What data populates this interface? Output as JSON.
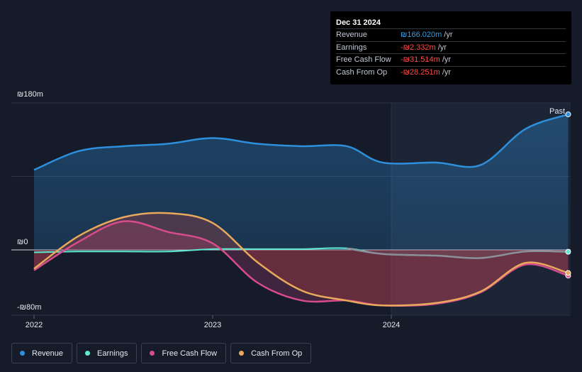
{
  "tooltip": {
    "date": "Dec 31 2024",
    "rows": [
      {
        "label": "Revenue",
        "value": "₪166.020m",
        "unit": "/yr",
        "color": "#3a9bdc"
      },
      {
        "label": "Earnings",
        "value": "-₪2.332m",
        "unit": "/yr",
        "color": "#ff4d4d"
      },
      {
        "label": "Free Cash Flow",
        "value": "-₪31.514m",
        "unit": "/yr",
        "color": "#ff4d4d"
      },
      {
        "label": "Cash From Op",
        "value": "-₪28.251m",
        "unit": "/yr",
        "color": "#ff4d4d"
      }
    ]
  },
  "legend": [
    {
      "label": "Revenue",
      "color": "#2e8fdc"
    },
    {
      "label": "Earnings",
      "color": "#5ee8d2"
    },
    {
      "label": "Free Cash Flow",
      "color": "#d84c8c"
    },
    {
      "label": "Cash From Op",
      "color": "#e8a95c"
    }
  ],
  "past_label": "Past",
  "chart_data": {
    "type": "area",
    "y_unit": "₪m",
    "ylim": [
      -80,
      180
    ],
    "y_ticks": [
      {
        "value": 180,
        "label": "₪180m"
      },
      {
        "value": 0,
        "label": "₪0"
      },
      {
        "value": -80,
        "label": "-₪80m"
      }
    ],
    "x_ticks": [
      {
        "value": 2022.0,
        "label": "2022"
      },
      {
        "value": 2023.0,
        "label": "2023"
      },
      {
        "value": 2024.0,
        "label": "2024"
      }
    ],
    "xlim": [
      2021.87,
      2024.99
    ],
    "past_start": 2024.0,
    "grid": true,
    "series": [
      {
        "name": "Revenue",
        "color": "#2e8fdc",
        "x": [
          2022.0,
          2022.25,
          2022.5,
          2022.75,
          2023.0,
          2023.25,
          2023.5,
          2023.75,
          2023.95,
          2024.25,
          2024.5,
          2024.75,
          2024.99
        ],
        "y": [
          98,
          121,
          127,
          130,
          137,
          130,
          127,
          127,
          107,
          107,
          104,
          148,
          166
        ]
      },
      {
        "name": "Earnings",
        "color": "#5ee8d2",
        "x": [
          2022.0,
          2022.25,
          2022.5,
          2022.75,
          2023.0,
          2023.25,
          2023.5,
          2023.75,
          2023.95,
          2024.25,
          2024.5,
          2024.75,
          2024.99
        ],
        "y": [
          -3,
          -2,
          -2,
          -2,
          1,
          1,
          1,
          2,
          -5,
          -7,
          -10,
          -2,
          -2.3
        ]
      },
      {
        "name": "Free Cash Flow",
        "color": "#d84c8c",
        "x": [
          2022.0,
          2022.25,
          2022.5,
          2022.75,
          2023.0,
          2023.25,
          2023.5,
          2023.75,
          2023.95,
          2024.25,
          2024.5,
          2024.75,
          2024.99
        ],
        "y": [
          -25,
          10,
          35,
          22,
          8,
          -40,
          -62,
          -62,
          -68,
          -66,
          -52,
          -18,
          -31.5
        ]
      },
      {
        "name": "Cash From Op",
        "color": "#e8a95c",
        "x": [
          2022.0,
          2022.25,
          2022.5,
          2022.75,
          2023.0,
          2023.25,
          2023.5,
          2023.75,
          2023.95,
          2024.25,
          2024.5,
          2024.75,
          2024.99
        ],
        "y": [
          -23,
          17,
          40,
          45,
          33,
          -15,
          -50,
          -62,
          -68,
          -65,
          -51,
          -16,
          -28.3
        ]
      }
    ]
  }
}
